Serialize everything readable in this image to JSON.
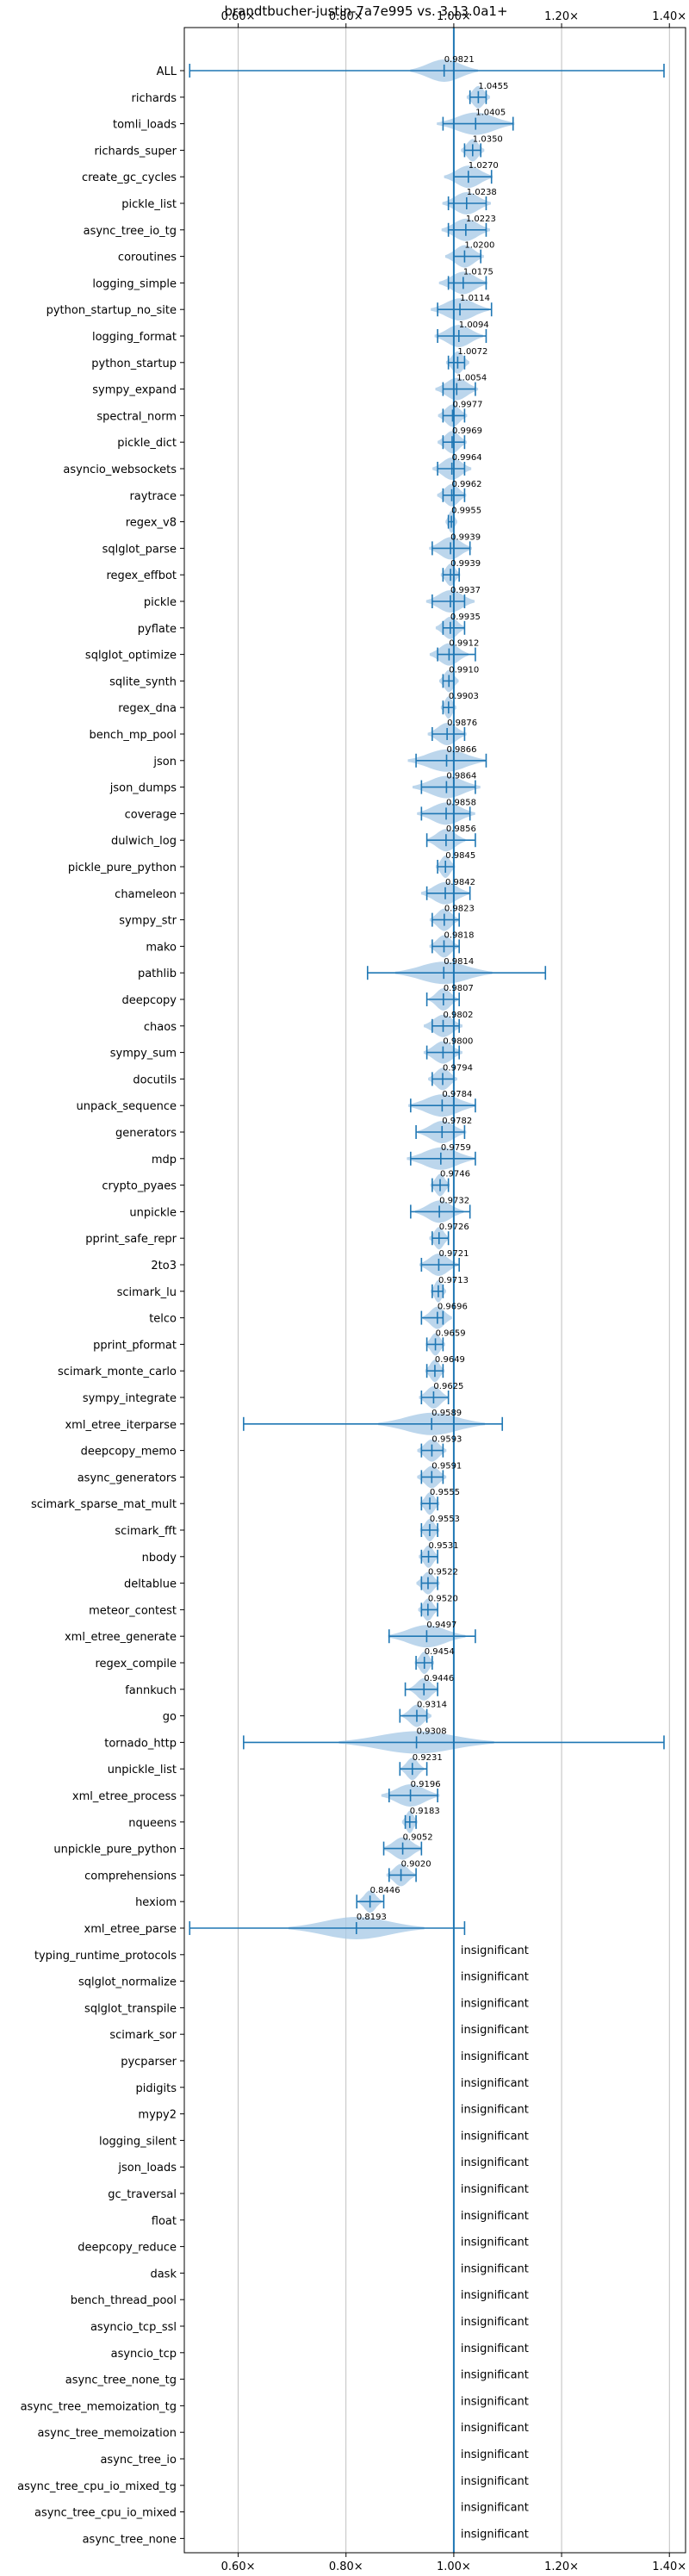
{
  "chart_data": {
    "type": "violin",
    "title": "brandtbucher-justin-7a7e995 vs. 3.13.0a1+",
    "xlim": [
      0.5,
      1.43
    ],
    "x_ticks": [
      {
        "value": 0.6,
        "label": "0.60×"
      },
      {
        "value": 0.8,
        "label": "0.80×"
      },
      {
        "value": 1.0,
        "label": "1.00×"
      },
      {
        "value": 1.2,
        "label": "1.20×"
      },
      {
        "value": 1.4,
        "label": "1.40×"
      }
    ],
    "reference_line": 1.0,
    "grid": true,
    "insignificant_label": "insignificant",
    "series": [
      {
        "name": "ALL",
        "value": 0.9821,
        "label": "0.9821",
        "min": 0.51,
        "max": 1.39,
        "spread": 0.035
      },
      {
        "name": "richards",
        "value": 1.0455,
        "label": "1.0455",
        "min": 1.03,
        "max": 1.06,
        "spread": 0.012
      },
      {
        "name": "tomli_loads",
        "value": 1.0405,
        "label": "1.0405",
        "min": 0.98,
        "max": 1.11,
        "spread": 0.04
      },
      {
        "name": "richards_super",
        "value": 1.035,
        "label": "1.0350",
        "min": 1.02,
        "max": 1.05,
        "spread": 0.012
      },
      {
        "name": "create_gc_cycles",
        "value": 1.027,
        "label": "1.0270",
        "min": 1.0,
        "max": 1.07,
        "spread": 0.025
      },
      {
        "name": "pickle_list",
        "value": 1.0238,
        "label": "1.0238",
        "min": 0.99,
        "max": 1.06,
        "spread": 0.025
      },
      {
        "name": "async_tree_io_tg",
        "value": 1.0223,
        "label": "1.0223",
        "min": 0.99,
        "max": 1.06,
        "spread": 0.025
      },
      {
        "name": "coroutines",
        "value": 1.02,
        "label": "1.0200",
        "min": 1.0,
        "max": 1.05,
        "spread": 0.02
      },
      {
        "name": "logging_simple",
        "value": 1.0175,
        "label": "1.0175",
        "min": 0.99,
        "max": 1.06,
        "spread": 0.025
      },
      {
        "name": "python_startup_no_site",
        "value": 1.0114,
        "label": "1.0114",
        "min": 0.97,
        "max": 1.07,
        "spread": 0.03
      },
      {
        "name": "logging_format",
        "value": 1.0094,
        "label": "1.0094",
        "min": 0.97,
        "max": 1.06,
        "spread": 0.025
      },
      {
        "name": "python_startup",
        "value": 1.0072,
        "label": "1.0072",
        "min": 0.99,
        "max": 1.02,
        "spread": 0.012
      },
      {
        "name": "sympy_expand",
        "value": 1.0054,
        "label": "1.0054",
        "min": 0.98,
        "max": 1.04,
        "spread": 0.022
      },
      {
        "name": "spectral_norm",
        "value": 0.9977,
        "label": "0.9977",
        "min": 0.98,
        "max": 1.02,
        "spread": 0.015
      },
      {
        "name": "pickle_dict",
        "value": 0.9969,
        "label": "0.9969",
        "min": 0.98,
        "max": 1.02,
        "spread": 0.015
      },
      {
        "name": "asyncio_websockets",
        "value": 0.9964,
        "label": "0.9964",
        "min": 0.97,
        "max": 1.02,
        "spread": 0.02
      },
      {
        "name": "raytrace",
        "value": 0.9962,
        "label": "0.9962",
        "min": 0.98,
        "max": 1.02,
        "spread": 0.015
      },
      {
        "name": "regex_v8",
        "value": 0.9955,
        "label": "0.9955",
        "min": 0.99,
        "max": 1.0,
        "spread": 0.006
      },
      {
        "name": "sqlglot_parse",
        "value": 0.9939,
        "label": "0.9939",
        "min": 0.96,
        "max": 1.03,
        "spread": 0.022
      },
      {
        "name": "regex_effbot",
        "value": 0.9939,
        "label": "0.9939",
        "min": 0.98,
        "max": 1.01,
        "spread": 0.01
      },
      {
        "name": "pickle",
        "value": 0.9937,
        "label": "0.9937",
        "min": 0.96,
        "max": 1.02,
        "spread": 0.025
      },
      {
        "name": "pyflate",
        "value": 0.9935,
        "label": "0.9935",
        "min": 0.98,
        "max": 1.02,
        "spread": 0.015
      },
      {
        "name": "sqlglot_optimize",
        "value": 0.9912,
        "label": "0.9912",
        "min": 0.97,
        "max": 1.04,
        "spread": 0.02
      },
      {
        "name": "sqlite_synth",
        "value": 0.991,
        "label": "0.9910",
        "min": 0.98,
        "max": 1.0,
        "spread": 0.01
      },
      {
        "name": "regex_dna",
        "value": 0.9903,
        "label": "0.9903",
        "min": 0.98,
        "max": 1.0,
        "spread": 0.008
      },
      {
        "name": "bench_mp_pool",
        "value": 0.9876,
        "label": "0.9876",
        "min": 0.96,
        "max": 1.02,
        "spread": 0.02
      },
      {
        "name": "json",
        "value": 0.9866,
        "label": "0.9866",
        "min": 0.93,
        "max": 1.06,
        "spread": 0.04
      },
      {
        "name": "json_dumps",
        "value": 0.9864,
        "label": "0.9864",
        "min": 0.94,
        "max": 1.04,
        "spread": 0.035
      },
      {
        "name": "coverage",
        "value": 0.9858,
        "label": "0.9858",
        "min": 0.94,
        "max": 1.03,
        "spread": 0.03
      },
      {
        "name": "dulwich_log",
        "value": 0.9856,
        "label": "0.9856",
        "min": 0.95,
        "max": 1.04,
        "spread": 0.02
      },
      {
        "name": "pickle_pure_python",
        "value": 0.9845,
        "label": "0.9845",
        "min": 0.97,
        "max": 1.0,
        "spread": 0.01
      },
      {
        "name": "chameleon",
        "value": 0.9842,
        "label": "0.9842",
        "min": 0.95,
        "max": 1.03,
        "spread": 0.025
      },
      {
        "name": "sympy_str",
        "value": 0.9823,
        "label": "0.9823",
        "min": 0.96,
        "max": 1.01,
        "spread": 0.015
      },
      {
        "name": "mako",
        "value": 0.9818,
        "label": "0.9818",
        "min": 0.96,
        "max": 1.01,
        "spread": 0.015
      },
      {
        "name": "pathlib",
        "value": 0.9814,
        "label": "0.9814",
        "min": 0.84,
        "max": 1.17,
        "spread": 0.05
      },
      {
        "name": "deepcopy",
        "value": 0.9807,
        "label": "0.9807",
        "min": 0.95,
        "max": 1.01,
        "spread": 0.015
      },
      {
        "name": "chaos",
        "value": 0.9802,
        "label": "0.9802",
        "min": 0.96,
        "max": 1.01,
        "spread": 0.02
      },
      {
        "name": "sympy_sum",
        "value": 0.98,
        "label": "0.9800",
        "min": 0.95,
        "max": 1.01,
        "spread": 0.02
      },
      {
        "name": "docutils",
        "value": 0.9794,
        "label": "0.9794",
        "min": 0.96,
        "max": 1.0,
        "spread": 0.015
      },
      {
        "name": "unpack_sequence",
        "value": 0.9784,
        "label": "0.9784",
        "min": 0.92,
        "max": 1.04,
        "spread": 0.035
      },
      {
        "name": "generators",
        "value": 0.9782,
        "label": "0.9782",
        "min": 0.93,
        "max": 1.02,
        "spread": 0.025
      },
      {
        "name": "mdp",
        "value": 0.9759,
        "label": "0.9759",
        "min": 0.92,
        "max": 1.04,
        "spread": 0.035
      },
      {
        "name": "crypto_pyaes",
        "value": 0.9746,
        "label": "0.9746",
        "min": 0.96,
        "max": 0.99,
        "spread": 0.01
      },
      {
        "name": "unpickle",
        "value": 0.9732,
        "label": "0.9732",
        "min": 0.92,
        "max": 1.03,
        "spread": 0.025
      },
      {
        "name": "pprint_safe_repr",
        "value": 0.9726,
        "label": "0.9726",
        "min": 0.96,
        "max": 0.99,
        "spread": 0.01
      },
      {
        "name": "2to3",
        "value": 0.9721,
        "label": "0.9721",
        "min": 0.94,
        "max": 1.01,
        "spread": 0.02
      },
      {
        "name": "scimark_lu",
        "value": 0.9713,
        "label": "0.9713",
        "min": 0.96,
        "max": 0.98,
        "spread": 0.008
      },
      {
        "name": "telco",
        "value": 0.9696,
        "label": "0.9696",
        "min": 0.94,
        "max": 0.98,
        "spread": 0.015
      },
      {
        "name": "pprint_pformat",
        "value": 0.9659,
        "label": "0.9659",
        "min": 0.95,
        "max": 0.98,
        "spread": 0.01
      },
      {
        "name": "scimark_monte_carlo",
        "value": 0.9649,
        "label": "0.9649",
        "min": 0.95,
        "max": 0.98,
        "spread": 0.01
      },
      {
        "name": "sympy_integrate",
        "value": 0.9625,
        "label": "0.9625",
        "min": 0.94,
        "max": 0.99,
        "spread": 0.015
      },
      {
        "name": "xml_etree_iterparse",
        "value": 0.9589,
        "label": "0.9589",
        "min": 0.61,
        "max": 1.09,
        "spread": 0.055
      },
      {
        "name": "deepcopy_memo",
        "value": 0.9593,
        "label": "0.9593",
        "min": 0.94,
        "max": 0.98,
        "spread": 0.015
      },
      {
        "name": "async_generators",
        "value": 0.9591,
        "label": "0.9591",
        "min": 0.94,
        "max": 0.98,
        "spread": 0.015
      },
      {
        "name": "scimark_sparse_mat_mult",
        "value": 0.9555,
        "label": "0.9555",
        "min": 0.94,
        "max": 0.97,
        "spread": 0.01
      },
      {
        "name": "scimark_fft",
        "value": 0.9553,
        "label": "0.9553",
        "min": 0.94,
        "max": 0.97,
        "spread": 0.01
      },
      {
        "name": "nbody",
        "value": 0.9531,
        "label": "0.9531",
        "min": 0.94,
        "max": 0.97,
        "spread": 0.01
      },
      {
        "name": "deltablue",
        "value": 0.9522,
        "label": "0.9522",
        "min": 0.94,
        "max": 0.97,
        "spread": 0.012
      },
      {
        "name": "meteor_contest",
        "value": 0.952,
        "label": "0.9520",
        "min": 0.94,
        "max": 0.97,
        "spread": 0.01
      },
      {
        "name": "xml_etree_generate",
        "value": 0.9497,
        "label": "0.9497",
        "min": 0.88,
        "max": 1.04,
        "spread": 0.04
      },
      {
        "name": "regex_compile",
        "value": 0.9454,
        "label": "0.9454",
        "min": 0.93,
        "max": 0.96,
        "spread": 0.01
      },
      {
        "name": "fannkuch",
        "value": 0.9446,
        "label": "0.9446",
        "min": 0.91,
        "max": 0.97,
        "spread": 0.015
      },
      {
        "name": "go",
        "value": 0.9314,
        "label": "0.9314",
        "min": 0.9,
        "max": 0.95,
        "spread": 0.015
      },
      {
        "name": "tornado_http",
        "value": 0.9308,
        "label": "0.9308",
        "min": 0.61,
        "max": 1.39,
        "spread": 0.08
      },
      {
        "name": "unpickle_list",
        "value": 0.9231,
        "label": "0.9231",
        "min": 0.9,
        "max": 0.95,
        "spread": 0.012
      },
      {
        "name": "xml_etree_process",
        "value": 0.9196,
        "label": "0.9196",
        "min": 0.88,
        "max": 0.97,
        "spread": 0.03
      },
      {
        "name": "nqueens",
        "value": 0.9183,
        "label": "0.9183",
        "min": 0.91,
        "max": 0.93,
        "spread": 0.008
      },
      {
        "name": "unpickle_pure_python",
        "value": 0.9052,
        "label": "0.9052",
        "min": 0.87,
        "max": 0.94,
        "spread": 0.02
      },
      {
        "name": "comprehensions",
        "value": 0.902,
        "label": "0.9020",
        "min": 0.88,
        "max": 0.93,
        "spread": 0.015
      },
      {
        "name": "hexiom",
        "value": 0.8446,
        "label": "0.8446",
        "min": 0.82,
        "max": 0.87,
        "spread": 0.012
      },
      {
        "name": "xml_etree_parse",
        "value": 0.8193,
        "label": "0.8193",
        "min": 0.51,
        "max": 1.02,
        "spread": 0.07
      },
      {
        "name": "typing_runtime_protocols",
        "insignificant": true
      },
      {
        "name": "sqlglot_normalize",
        "insignificant": true
      },
      {
        "name": "sqlglot_transpile",
        "insignificant": true
      },
      {
        "name": "scimark_sor",
        "insignificant": true
      },
      {
        "name": "pycparser",
        "insignificant": true
      },
      {
        "name": "pidigits",
        "insignificant": true
      },
      {
        "name": "mypy2",
        "insignificant": true
      },
      {
        "name": "logging_silent",
        "insignificant": true
      },
      {
        "name": "json_loads",
        "insignificant": true
      },
      {
        "name": "gc_traversal",
        "insignificant": true
      },
      {
        "name": "float",
        "insignificant": true
      },
      {
        "name": "deepcopy_reduce",
        "insignificant": true
      },
      {
        "name": "dask",
        "insignificant": true
      },
      {
        "name": "bench_thread_pool",
        "insignificant": true
      },
      {
        "name": "asyncio_tcp_ssl",
        "insignificant": true
      },
      {
        "name": "asyncio_tcp",
        "insignificant": true
      },
      {
        "name": "async_tree_none_tg",
        "insignificant": true
      },
      {
        "name": "async_tree_memoization_tg",
        "insignificant": true
      },
      {
        "name": "async_tree_memoization",
        "insignificant": true
      },
      {
        "name": "async_tree_io",
        "insignificant": true
      },
      {
        "name": "async_tree_cpu_io_mixed_tg",
        "insignificant": true
      },
      {
        "name": "async_tree_cpu_io_mixed",
        "insignificant": true
      },
      {
        "name": "async_tree_none",
        "insignificant": true
      }
    ]
  },
  "colors": {
    "line": "#1f77b4",
    "violin": "#a6c8e6",
    "grid": "#b0b0b0",
    "axis": "#000000"
  }
}
